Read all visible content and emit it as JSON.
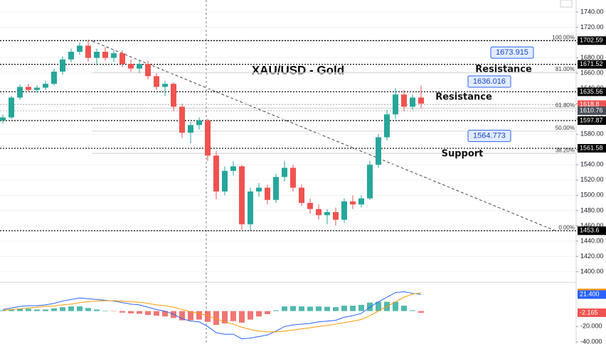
{
  "chart_data": [
    {
      "type": "candlestick",
      "title": "XAU/USD - Gold",
      "open": [
        1598,
        1602,
        1628,
        1642,
        1638,
        1641,
        1646,
        1662,
        1678,
        1688,
        1696,
        1680,
        1688,
        1680,
        1686,
        1672,
        1666,
        1672,
        1656,
        1642,
        1646,
        1616,
        1582,
        1592,
        1598,
        1552,
        1505,
        1532,
        1538,
        1462,
        1505,
        1510,
        1494,
        1524,
        1536,
        1510,
        1490,
        1482,
        1474,
        1478,
        1468,
        1492,
        1488,
        1496,
        1540,
        1576,
        1606,
        1632,
        1616,
        1628
      ],
      "high": [
        1606,
        1630,
        1645,
        1646,
        1644,
        1650,
        1666,
        1682,
        1692,
        1700,
        1704,
        1692,
        1694,
        1690,
        1690,
        1678,
        1676,
        1676,
        1660,
        1650,
        1648,
        1620,
        1596,
        1602,
        1600,
        1558,
        1538,
        1545,
        1540,
        1510,
        1516,
        1514,
        1528,
        1545,
        1540,
        1514,
        1496,
        1488,
        1482,
        1484,
        1496,
        1500,
        1500,
        1545,
        1580,
        1612,
        1640,
        1638,
        1632,
        1644
      ],
      "low": [
        1594,
        1600,
        1625,
        1636,
        1634,
        1638,
        1644,
        1658,
        1674,
        1684,
        1675,
        1670,
        1676,
        1674,
        1668,
        1662,
        1660,
        1652,
        1638,
        1630,
        1610,
        1575,
        1568,
        1586,
        1545,
        1495,
        1500,
        1526,
        1455,
        1454,
        1498,
        1488,
        1490,
        1518,
        1505,
        1486,
        1476,
        1468,
        1462,
        1460,
        1464,
        1482,
        1484,
        1494,
        1536,
        1572,
        1600,
        1610,
        1612,
        1614
      ],
      "close": [
        1602,
        1628,
        1642,
        1638,
        1641,
        1646,
        1662,
        1678,
        1688,
        1696,
        1680,
        1688,
        1680,
        1686,
        1672,
        1666,
        1672,
        1656,
        1642,
        1646,
        1616,
        1582,
        1592,
        1598,
        1552,
        1505,
        1532,
        1538,
        1462,
        1505,
        1510,
        1494,
        1524,
        1536,
        1510,
        1490,
        1482,
        1474,
        1478,
        1468,
        1492,
        1488,
        1496,
        1540,
        1576,
        1606,
        1632,
        1616,
        1628,
        1620
      ],
      "up_color": "#26a69a",
      "down_color": "#ef5350",
      "ylim": [
        1387,
        1755.8
      ],
      "yticks": [
        {
          "value": 1740,
          "label": "1740.00"
        },
        {
          "value": 1720,
          "label": "1720.00"
        },
        {
          "value": 1700,
          "label": "1700.00"
        },
        {
          "value": 1680,
          "label": "1680.00"
        },
        {
          "value": 1660,
          "label": "1660.00"
        },
        {
          "value": 1640,
          "label": "1640.00"
        },
        {
          "value": 1620,
          "label": "1620.00"
        },
        {
          "value": 1600,
          "label": "1600.00"
        },
        {
          "value": 1580,
          "label": "1580.00"
        },
        {
          "value": 1560,
          "label": "1560.00"
        },
        {
          "value": 1540,
          "label": "1540.00"
        },
        {
          "value": 1520,
          "label": "1520.00"
        },
        {
          "value": 1500,
          "label": "1500.00"
        },
        {
          "value": 1480,
          "label": "1480.00"
        },
        {
          "value": 1460,
          "label": "1460.00"
        },
        {
          "value": 1440,
          "label": "1440.00"
        },
        {
          "value": 1420,
          "label": "1420.00"
        },
        {
          "value": 1400,
          "label": "1400.00"
        }
      ],
      "grid": true,
      "levels": [
        {
          "value": 1702.59,
          "color": "#000000"
        },
        {
          "value": 1671.52,
          "color": "#000000"
        },
        {
          "value": 1635.56,
          "color": "#000000"
        },
        {
          "value": 1618.8,
          "color": "#ef5350"
        },
        {
          "value": 1610.76,
          "color": "#4a4e59"
        },
        {
          "value": 1597.87,
          "color": "#000000"
        },
        {
          "value": 1561.58,
          "color": "#000000"
        },
        {
          "value": 1453.6,
          "color": "#000000"
        }
      ],
      "fib": [
        {
          "value": 1702.5,
          "label": "100.00%"
        },
        {
          "value": 1661,
          "label": "81.00%"
        },
        {
          "value": 1614,
          "label": "61.80%"
        },
        {
          "value": 1584,
          "label": "50.00%"
        },
        {
          "value": 1555,
          "label": "38.20%"
        },
        {
          "value": 1453.6,
          "label": "0.00%"
        }
      ],
      "callouts": [
        1673.915,
        1636.016,
        1564.773
      ],
      "annotations": [
        "Resistance",
        "Resistance",
        "Support"
      ]
    },
    {
      "type": "macd",
      "series": [
        {
          "color": "#2962ff",
          "last_label": "21.400",
          "values": [
            2,
            4,
            6,
            7,
            7,
            8,
            10,
            13,
            15,
            17,
            16,
            15,
            14,
            13,
            11,
            9,
            8,
            5,
            2,
            0,
            -4,
            -10,
            -13,
            -14,
            -20,
            -28,
            -30,
            -30,
            -36,
            -35,
            -33,
            -31,
            -26,
            -20,
            -18,
            -17,
            -16,
            -14,
            -13,
            -12,
            -8,
            -6,
            -3,
            5,
            12,
            18,
            24,
            25,
            23,
            21.4
          ]
        },
        {
          "color": "#ff9800",
          "last_label": "23.565",
          "values": [
            1,
            2,
            3,
            4,
            5,
            6,
            6.5,
            8,
            9,
            11,
            12,
            13,
            13.4,
            13.4,
            13,
            12,
            11.5,
            10,
            8,
            7,
            5,
            2,
            -1,
            -3,
            -6,
            -10,
            -14,
            -17,
            -21,
            -24,
            -26,
            -27,
            -27,
            -26,
            -24.5,
            -23,
            -21.7,
            -20,
            -18.6,
            -17,
            -15,
            -13,
            -11,
            -6,
            0,
            6,
            12,
            18,
            22,
            23.565
          ]
        }
      ],
      "histogram": {
        "up_color": "#26a69a",
        "down_color": "#ef5350",
        "last_label": "-2.165",
        "values": [
          1,
          2,
          3,
          3,
          2,
          2,
          3.5,
          5,
          6,
          6,
          4,
          2,
          0.6,
          -0.4,
          -2,
          -3,
          -3.5,
          -5,
          -6,
          -7,
          -9,
          -12,
          -12,
          -11,
          -14,
          -18,
          -16,
          -13,
          -15,
          -11,
          -7,
          -4,
          1,
          6,
          6.5,
          6,
          5.7,
          6,
          5.6,
          5,
          7,
          7,
          8,
          11,
          12,
          12,
          12,
          7,
          1,
          -2.165
        ]
      },
      "ylim": [
        -42.7,
        36.4
      ],
      "yticks": [
        {
          "value": -20,
          "label": "-20.000"
        },
        {
          "value": -40,
          "label": "-40.000"
        }
      ]
    }
  ]
}
